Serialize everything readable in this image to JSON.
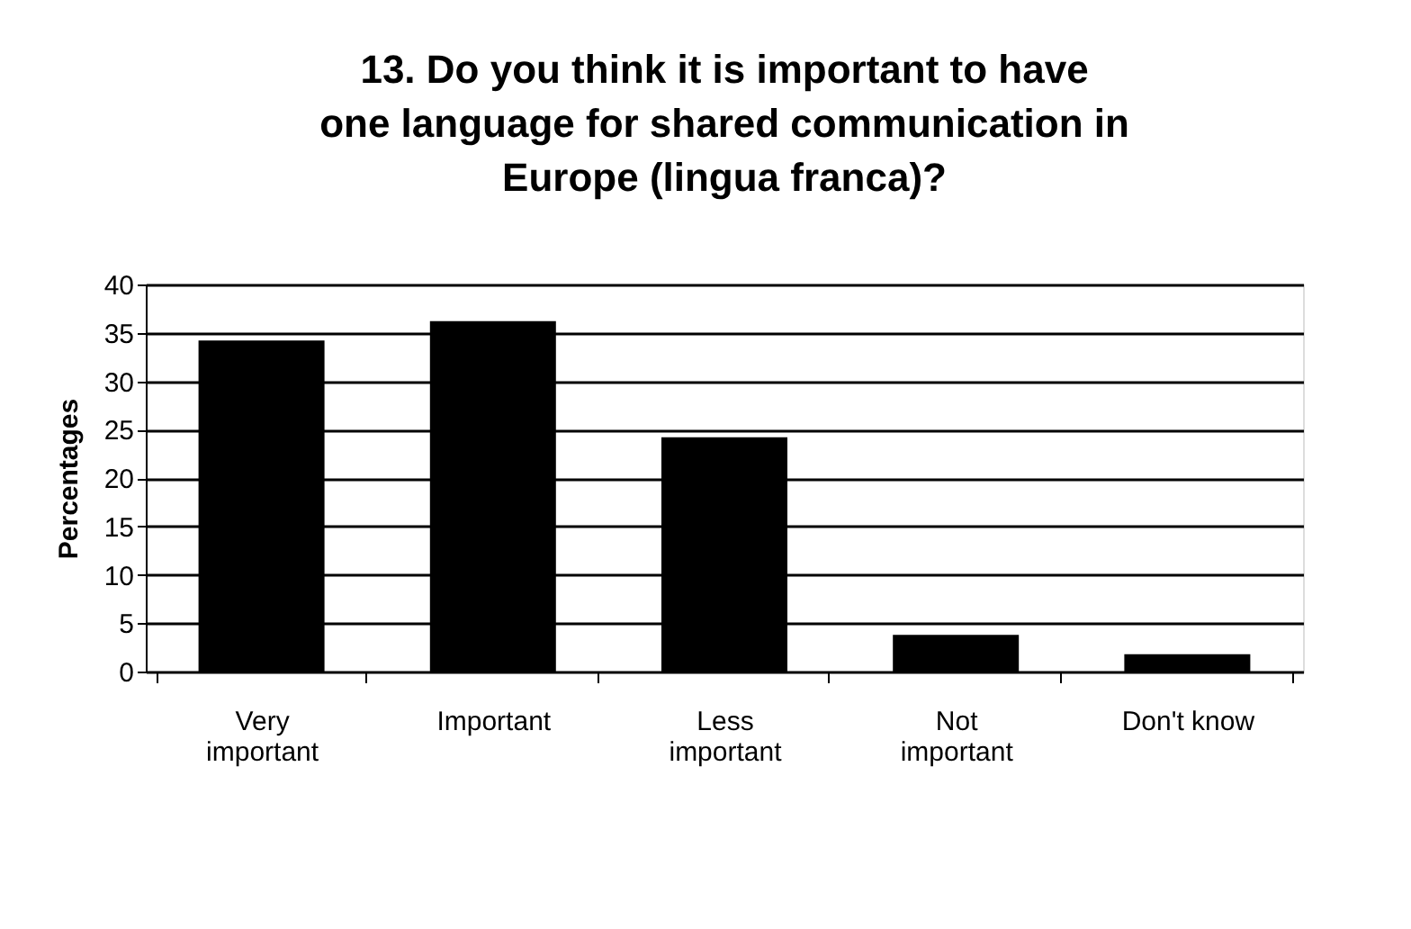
{
  "chart_data": {
    "type": "bar",
    "title": "13. Do you think it is important to have one language for shared communication in Europe (lingua franca)?",
    "ylabel": "Percentages",
    "categories": [
      "Very important",
      "Important",
      "Less important",
      "Not important",
      "Don't know"
    ],
    "values": [
      34.2,
      36.2,
      24.2,
      3.8,
      1.8
    ],
    "color": "#000000",
    "ylim": [
      0,
      40
    ],
    "yticks": [
      0,
      5,
      10,
      15,
      20,
      25,
      30,
      35,
      40
    ],
    "grid": "y"
  }
}
